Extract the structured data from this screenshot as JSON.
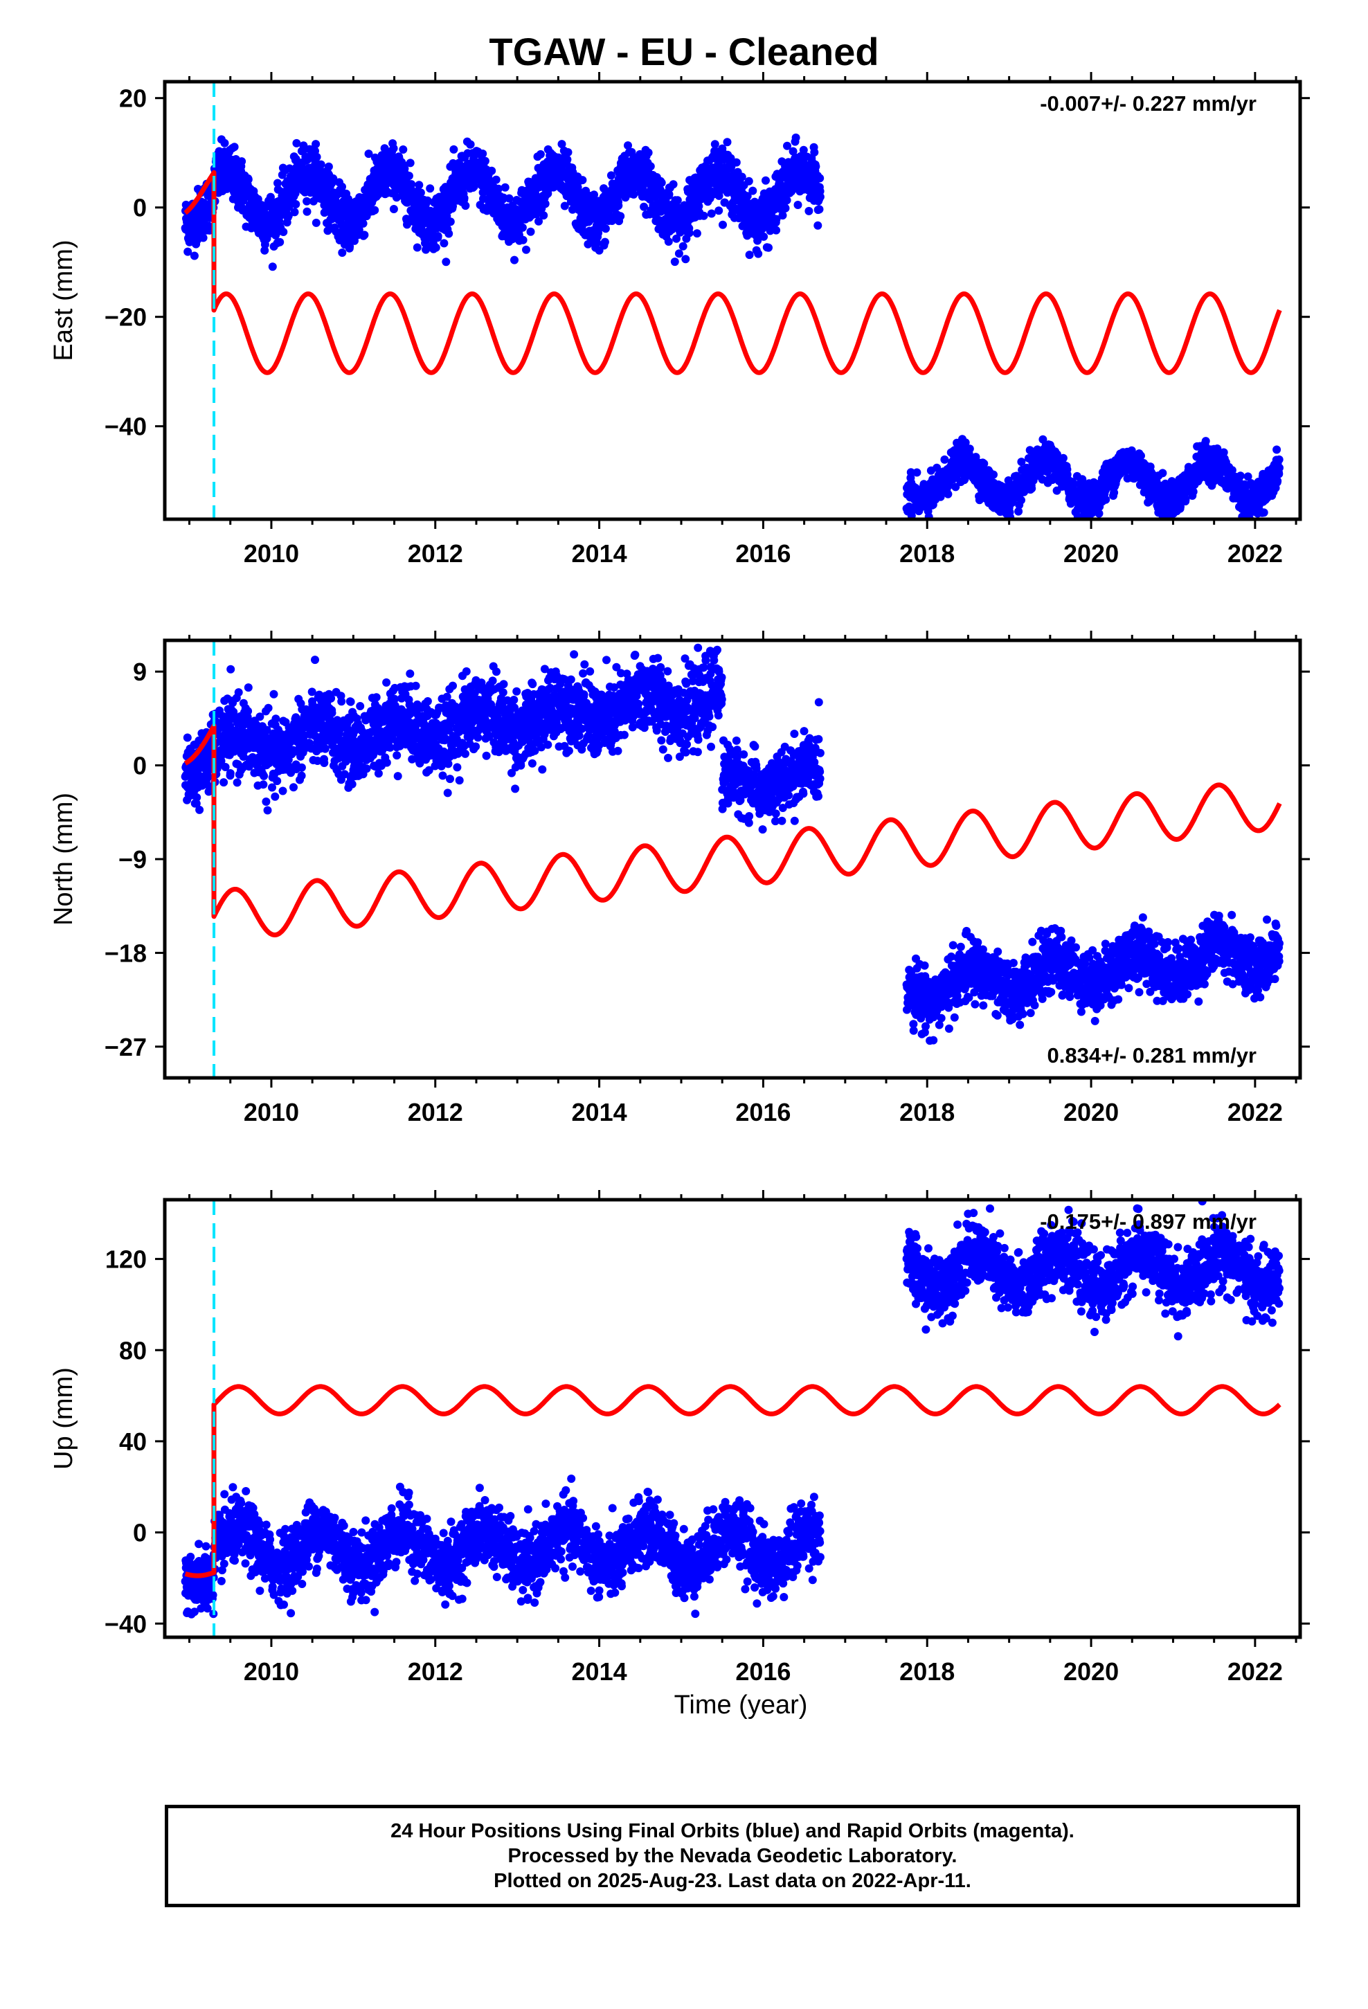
{
  "title": "TGAW  - EU - Cleaned",
  "xlabel": "Time (year)",
  "footer": [
    "24 Hour Positions Using Final Orbits (blue) and Rapid Orbits (magenta).",
    "Processed by the Nevada Geodetic Laboratory.",
    "Plotted on 2025-Aug-23. Last data on 2022-Apr-11."
  ],
  "colors": {
    "data": "#0000ff",
    "model": "#ff0000",
    "event": "#00e5ff",
    "frame": "#000000"
  },
  "chart_data": [
    {
      "type": "scatter",
      "panel": "east",
      "ylabel": "East (mm)",
      "xlim": [
        2008.7,
        2022.55
      ],
      "ylim": [
        -57,
        23
      ],
      "xticks": [
        2010,
        2012,
        2014,
        2016,
        2018,
        2020,
        2022
      ],
      "yticks": [
        20,
        0,
        -20,
        -40
      ],
      "ytick_labels": [
        "20",
        "0",
        "−20",
        "−40"
      ],
      "annotation": "-0.007+/- 0.227 mm/yr",
      "annotation_position": "top-right",
      "event_line_x": 2009.3,
      "series": [
        {
          "kind": "data",
          "segments": [
            {
              "x_start": 2008.95,
              "x_end": 2009.3,
              "offset": 0,
              "amplitude": 3,
              "trend": 0,
              "noise": 2.5,
              "phase": 2009.45
            },
            {
              "x_start": 2009.3,
              "x_end": 2016.7,
              "offset": 2,
              "amplitude": 4.5,
              "trend": 0,
              "noise": 2.5,
              "phase": 2009.45
            },
            {
              "x_start": 2017.75,
              "x_end": 2022.3,
              "offset": -50,
              "amplitude": 3.5,
              "trend": 0,
              "noise": 1.6,
              "phase": 2009.45
            }
          ]
        },
        {
          "kind": "model",
          "segments": [
            {
              "x_start": 2008.95,
              "x_end": 2009.3,
              "offset": 1,
              "amplitude": 2,
              "trend": 12,
              "phase": 2009.45
            },
            {
              "x_start": 2009.3,
              "x_end": 2022.3,
              "offset": -23,
              "amplitude": 7.2,
              "trend": 0,
              "phase": 2009.45
            }
          ]
        }
      ]
    },
    {
      "type": "scatter",
      "panel": "north",
      "ylabel": "North (mm)",
      "xlim": [
        2008.7,
        2022.55
      ],
      "ylim": [
        -30,
        12
      ],
      "xticks": [
        2010,
        2012,
        2014,
        2016,
        2018,
        2020,
        2022
      ],
      "yticks": [
        9,
        0,
        -9,
        -18,
        -27
      ],
      "ytick_labels": [
        "9",
        "0",
        "−9",
        "−18",
        "−27"
      ],
      "annotation": "0.834+/- 0.281 mm/yr",
      "annotation_position": "bottom-right",
      "event_line_x": 2009.3,
      "series": [
        {
          "kind": "data",
          "segments": [
            {
              "x_start": 2008.95,
              "x_end": 2009.3,
              "offset": 1,
              "amplitude": 1.5,
              "trend": 0,
              "noise": 1.6,
              "phase": 2009.55
            },
            {
              "x_start": 2009.3,
              "x_end": 2015.5,
              "offset": 1.5,
              "amplitude": 1.2,
              "trend": 0.8,
              "noise": 1.8,
              "phase": 2009.55
            },
            {
              "x_start": 2015.5,
              "x_end": 2016.7,
              "offset": -2,
              "amplitude": 1,
              "trend": 0.8,
              "noise": 1.5,
              "phase": 2009.55
            },
            {
              "x_start": 2017.75,
              "x_end": 2022.3,
              "offset": -21.5,
              "amplitude": 1.3,
              "trend": 0.8,
              "noise": 1.4,
              "phase": 2009.55
            }
          ]
        },
        {
          "kind": "model",
          "segments": [
            {
              "x_start": 2008.95,
              "x_end": 2009.3,
              "offset": 1,
              "amplitude": 1,
              "trend": 8,
              "phase": 2009.55
            },
            {
              "x_start": 2009.3,
              "x_end": 2022.3,
              "offset": -14.5,
              "amplitude": 2.4,
              "trend": 0.834,
              "phase": 2009.55
            }
          ]
        }
      ]
    },
    {
      "type": "scatter",
      "panel": "up",
      "ylabel": "Up (mm)",
      "xlim": [
        2008.7,
        2022.55
      ],
      "ylim": [
        -46,
        146
      ],
      "xticks": [
        2010,
        2012,
        2014,
        2016,
        2018,
        2020,
        2022
      ],
      "yticks": [
        120,
        80,
        40,
        0,
        -40
      ],
      "ytick_labels": [
        "120",
        "80",
        "40",
        "0",
        "−40"
      ],
      "annotation": "-0.175+/- 0.897 mm/yr",
      "annotation_position": "top-right",
      "event_line_x": 2009.3,
      "series": [
        {
          "kind": "data",
          "segments": [
            {
              "x_start": 2008.95,
              "x_end": 2009.3,
              "offset": -18,
              "amplitude": 4,
              "trend": 0,
              "noise": 7,
              "phase": 2009.6
            },
            {
              "x_start": 2009.3,
              "x_end": 2016.7,
              "offset": -7,
              "amplitude": 8,
              "trend": 0,
              "noise": 7,
              "phase": 2009.6
            },
            {
              "x_start": 2017.75,
              "x_end": 2022.3,
              "offset": 115,
              "amplitude": 8,
              "trend": 0,
              "noise": 7,
              "phase": 2009.6
            }
          ]
        },
        {
          "kind": "model",
          "segments": [
            {
              "x_start": 2008.95,
              "x_end": 2009.3,
              "offset": -17,
              "amplitude": 2,
              "trend": 0,
              "phase": 2009.6
            },
            {
              "x_start": 2009.3,
              "x_end": 2022.3,
              "offset": 58,
              "amplitude": 6,
              "trend": 0,
              "phase": 2009.6
            }
          ]
        }
      ]
    }
  ]
}
